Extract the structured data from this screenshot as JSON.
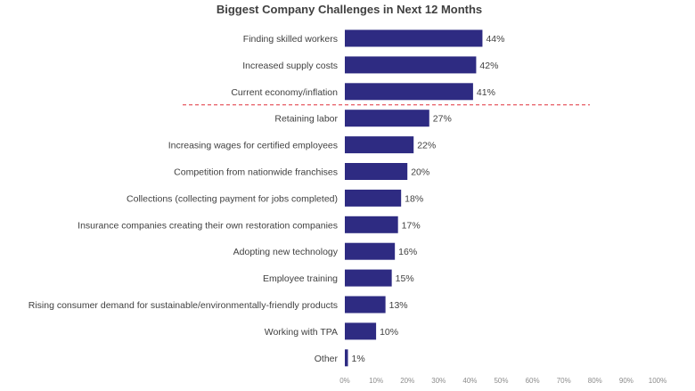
{
  "chart_data": {
    "type": "bar",
    "orientation": "horizontal",
    "title": "Biggest Company Challenges in Next 12 Months",
    "xlabel": "",
    "ylabel": "",
    "xlim": [
      0,
      100
    ],
    "x_ticks": [
      "0%",
      "10%",
      "20%",
      "30%",
      "40%",
      "50%",
      "60%",
      "70%",
      "80%",
      "90%",
      "100%"
    ],
    "categories": [
      "Finding skilled workers",
      "Increased supply costs",
      "Current economy/inflation",
      "Retaining labor",
      "Increasing wages for certified employees",
      "Competition from nationwide franchises",
      "Collections (collecting payment for jobs completed)",
      "Insurance companies creating their own restoration companies",
      "Adopting new technology",
      "Employee training",
      "Rising consumer demand for sustainable/environmentally-friendly products",
      "Working with TPA",
      "Other"
    ],
    "values": [
      44,
      42,
      41,
      27,
      22,
      20,
      18,
      17,
      16,
      15,
      13,
      10,
      1
    ],
    "value_labels": [
      "44%",
      "42%",
      "41%",
      "27%",
      "22%",
      "20%",
      "18%",
      "17%",
      "16%",
      "15%",
      "13%",
      "10%",
      "1%"
    ],
    "separator_after_index": 2,
    "grid": false,
    "legend": "none",
    "colors": {
      "bar": "#2e2b82",
      "separator": "#e0303a",
      "text": "#404040",
      "tick": "#8c8c8c"
    }
  }
}
